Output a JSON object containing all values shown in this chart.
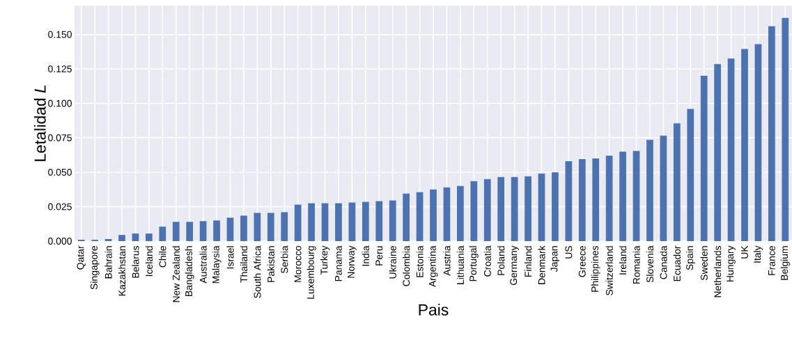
{
  "chart_data": {
    "type": "bar",
    "xlabel": "Pais",
    "ylabel": "Letalidad *L*",
    "categories": [
      "Qatar",
      "Singapore",
      "Bahrain",
      "Kazakhstan",
      "Belarus",
      "Iceland",
      "Chile",
      "New Zealand",
      "Bangladesh",
      "Australia",
      "Malaysia",
      "Israel",
      "Thailand",
      "South Africa",
      "Pakistan",
      "Serbia",
      "Morocco",
      "Luxembourg",
      "Turkey",
      "Panama",
      "Norway",
      "India",
      "Peru",
      "Ukraine",
      "Colombia",
      "Estonia",
      "Argentina",
      "Austria",
      "Lithuania",
      "Portugal",
      "Croatia",
      "Poland",
      "Germany",
      "Finland",
      "Denmark",
      "Japan",
      "US",
      "Greece",
      "Philippines",
      "Switzerland",
      "Ireland",
      "Romania",
      "Slovenia",
      "Canada",
      "Ecuador",
      "Spain",
      "Sweden",
      "Netherlands",
      "Hungary",
      "UK",
      "Italy",
      "France",
      "Belgium"
    ],
    "values": [
      0.001,
      0.001,
      0.0015,
      0.0045,
      0.0055,
      0.0055,
      0.0105,
      0.014,
      0.014,
      0.0145,
      0.015,
      0.017,
      0.0185,
      0.0205,
      0.0205,
      0.021,
      0.0265,
      0.0275,
      0.0275,
      0.0275,
      0.028,
      0.0285,
      0.029,
      0.0295,
      0.0345,
      0.0355,
      0.0375,
      0.039,
      0.04,
      0.0435,
      0.045,
      0.0465,
      0.0465,
      0.047,
      0.049,
      0.05,
      0.058,
      0.0595,
      0.06,
      0.062,
      0.065,
      0.0655,
      0.0735,
      0.0765,
      0.0855,
      0.096,
      0.12,
      0.1285,
      0.1325,
      0.1395,
      0.143,
      0.156,
      0.162
    ],
    "color": "#4c72b0",
    "ylim": [
      0,
      0.171
    ],
    "yticks": [
      {
        "value": 0,
        "label": "0.000"
      },
      {
        "value": 0.025,
        "label": "0.025"
      },
      {
        "value": 0.05,
        "label": "0.050"
      },
      {
        "value": 0.075,
        "label": "0.075"
      },
      {
        "value": 0.1,
        "label": "0.100"
      },
      {
        "value": 0.125,
        "label": "0.125"
      },
      {
        "value": 0.15,
        "label": "0.150"
      }
    ],
    "grid": true
  }
}
